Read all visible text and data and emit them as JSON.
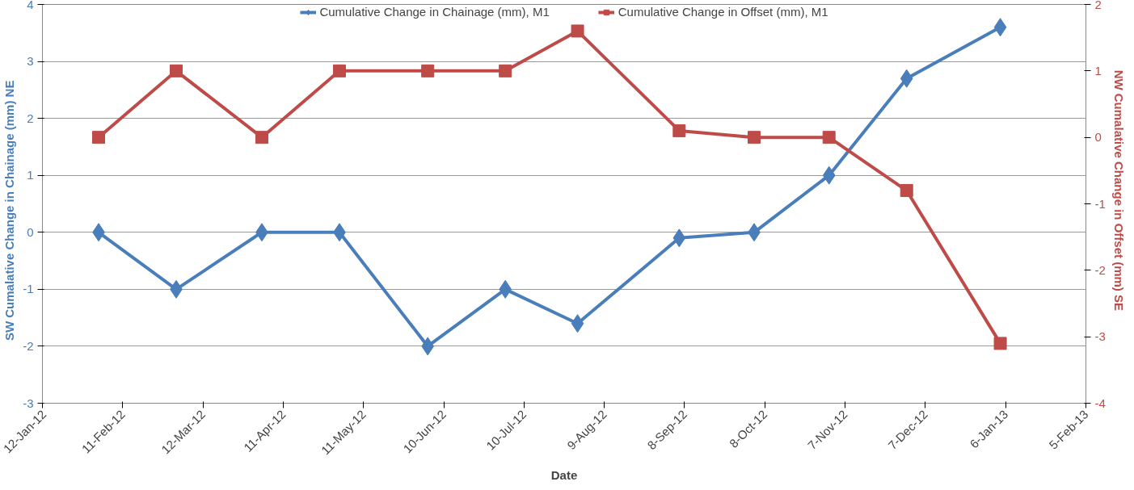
{
  "chart_data": {
    "type": "line",
    "xlabel": "Date",
    "ylabel": "SW   Cumalative Change in Chainage (mm)   NE",
    "y2label": "NW      Cumalative Change in Offset (mm)    SE",
    "x": [
      "2012-02-02",
      "2012-03-02",
      "2012-04-03",
      "2012-05-02",
      "2012-06-04",
      "2012-07-03",
      "2012-07-30",
      "2012-09-06",
      "2012-10-04",
      "2012-11-01",
      "2012-11-30",
      "2013-01-04"
    ],
    "series": [
      {
        "name": "Cumulative Change in Chainage (mm), M1",
        "color": "#4a7ebb",
        "marker": "diamond",
        "values": [
          0,
          -1,
          0,
          0,
          -2,
          -1,
          -1.6,
          -0.1,
          0,
          1,
          2.7,
          3.6
        ]
      },
      {
        "name": "Cumulative Change in Offset (mm), M1",
        "color": "#be4b48",
        "marker": "square",
        "axis": "y2",
        "values": [
          0,
          1,
          0,
          1,
          1,
          1,
          1.6,
          0.1,
          0,
          0,
          -0.8,
          -3.1
        ]
      }
    ],
    "xlim": [
      "2012-01-12",
      "2013-02-05"
    ],
    "xticks": [
      {
        "value": "2012-01-12",
        "label": "12-Jan-12"
      },
      {
        "value": "2012-02-11",
        "label": "11-Feb-12"
      },
      {
        "value": "2012-03-12",
        "label": "12-Mar-12"
      },
      {
        "value": "2012-04-11",
        "label": "11-Apr-12"
      },
      {
        "value": "2012-05-11",
        "label": "11-May-12"
      },
      {
        "value": "2012-06-10",
        "label": "10-Jun-12"
      },
      {
        "value": "2012-07-10",
        "label": "10-Jul-12"
      },
      {
        "value": "2012-08-09",
        "label": "9-Aug-12"
      },
      {
        "value": "2012-09-08",
        "label": "8-Sep-12"
      },
      {
        "value": "2012-10-08",
        "label": "8-Oct-12"
      },
      {
        "value": "2012-11-07",
        "label": "7-Nov-12"
      },
      {
        "value": "2012-12-07",
        "label": "7-Dec-12"
      },
      {
        "value": "2013-01-06",
        "label": "6-Jan-13"
      },
      {
        "value": "2013-02-05",
        "label": "5-Feb-13"
      }
    ],
    "ylim": [
      -3,
      4
    ],
    "yticks": [
      -3,
      -2,
      -1,
      0,
      1,
      2,
      3,
      4
    ],
    "y2lim": [
      -4,
      2
    ],
    "y2ticks": [
      -4,
      -3,
      -2,
      -1,
      0,
      1,
      2
    ],
    "grid": "y",
    "legend": "top",
    "line_style": "solid"
  }
}
